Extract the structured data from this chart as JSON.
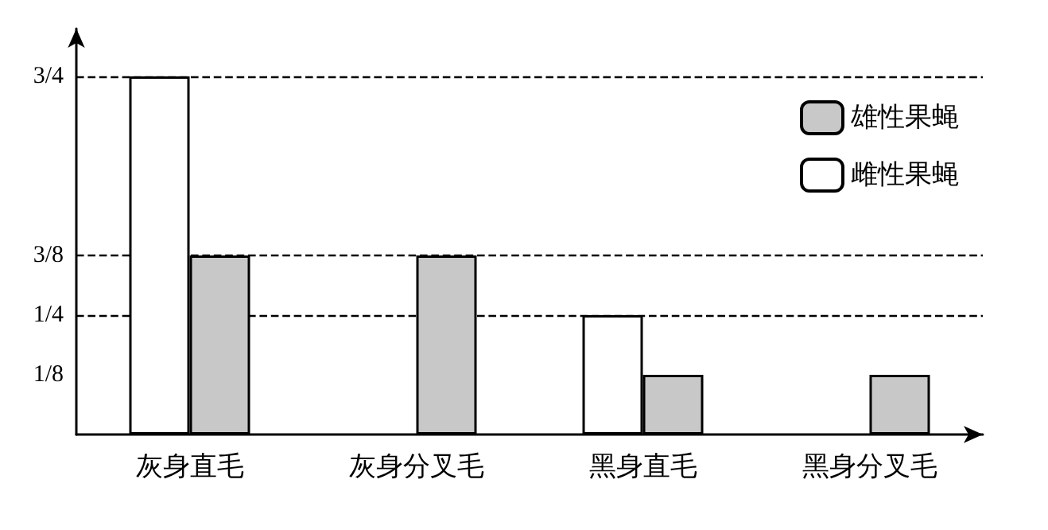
{
  "chart_data": {
    "type": "bar",
    "categories": [
      "灰身直毛",
      "灰身分叉毛",
      "黑身直毛",
      "黑身分叉毛"
    ],
    "series": [
      {
        "name": "雌性果蝇",
        "color": "#ffffff",
        "values": [
          0.75,
          0,
          0.25,
          0
        ]
      },
      {
        "name": "雄性果蝇",
        "color": "#c8c8c8",
        "values": [
          0.375,
          0.375,
          0.125,
          0.125
        ]
      }
    ],
    "ylim": [
      0,
      0.85
    ],
    "yticks": [
      {
        "value": 0.125,
        "label": "1/8"
      },
      {
        "value": 0.25,
        "label": "1/4"
      },
      {
        "value": 0.375,
        "label": "3/8"
      },
      {
        "value": 0.75,
        "label": "3/4"
      }
    ],
    "grid": "y",
    "legend": "top right"
  }
}
